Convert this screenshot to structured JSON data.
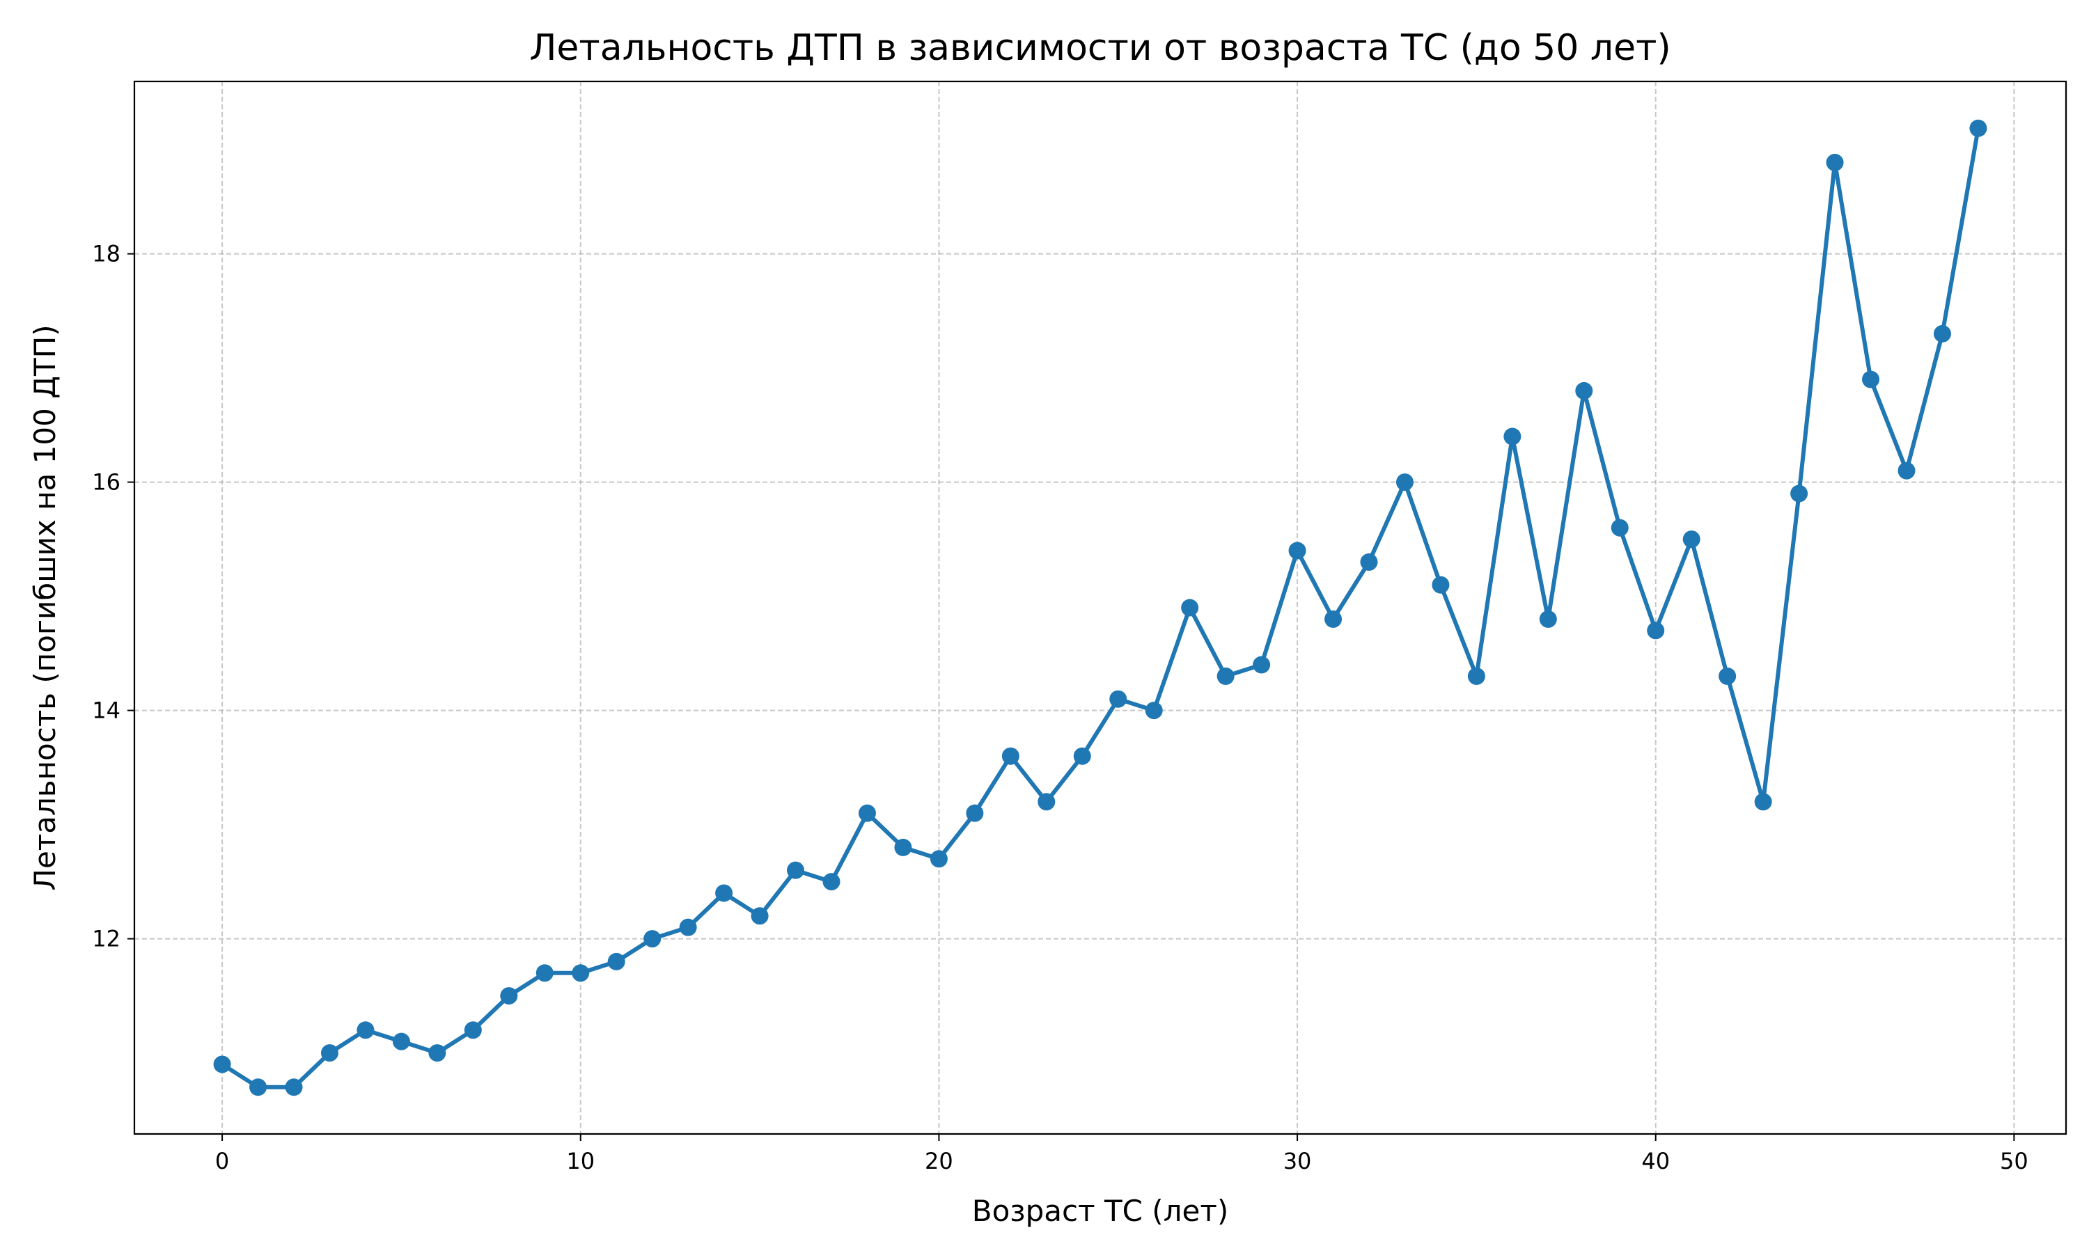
{
  "chart_data": {
    "type": "line",
    "title": "Летальность ДТП в зависимости от возраста ТС (до 50 лет)",
    "xlabel": "Возраст ТС (лет)",
    "ylabel": "Летальность (погибших на 100 ДТП)",
    "xlim": [
      -2.45,
      51.45
    ],
    "ylim": [
      10.29,
      19.51
    ],
    "xticks": [
      0,
      10,
      20,
      30,
      40,
      50
    ],
    "yticks": [
      12,
      14,
      16,
      18
    ],
    "xtick_labels": [
      "0",
      "10",
      "20",
      "30",
      "40",
      "50"
    ],
    "ytick_labels": [
      "12",
      "14",
      "16",
      "18"
    ],
    "grid": true,
    "legend": false,
    "series_color": "#1f77b4",
    "x": [
      0,
      1,
      2,
      3,
      4,
      5,
      6,
      7,
      8,
      9,
      10,
      11,
      12,
      13,
      14,
      15,
      16,
      17,
      18,
      19,
      20,
      21,
      22,
      23,
      24,
      25,
      26,
      27,
      28,
      29,
      30,
      31,
      32,
      33,
      34,
      35,
      36,
      37,
      38,
      39,
      40,
      41,
      42,
      43,
      44,
      45,
      46,
      47,
      48,
      49
    ],
    "y": [
      10.9,
      10.7,
      10.7,
      11.0,
      11.2,
      11.1,
      11.0,
      11.2,
      11.5,
      11.7,
      11.7,
      11.8,
      12.0,
      12.1,
      12.4,
      12.2,
      12.6,
      12.5,
      13.1,
      12.8,
      12.7,
      13.1,
      13.6,
      13.2,
      13.6,
      14.1,
      14.0,
      14.9,
      14.3,
      14.4,
      15.4,
      14.8,
      15.3,
      16.0,
      15.1,
      14.3,
      16.4,
      14.8,
      16.8,
      15.6,
      14.7,
      15.5,
      14.3,
      13.2,
      15.9,
      18.8,
      16.9,
      16.1,
      17.3,
      19.1
    ]
  }
}
